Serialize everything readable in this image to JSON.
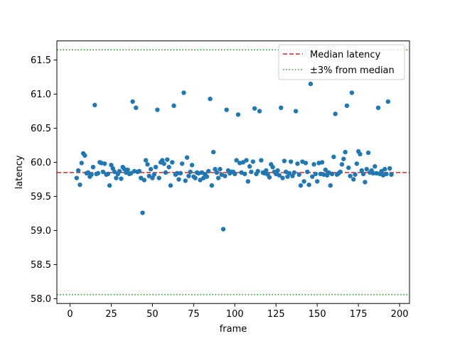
{
  "chart_data": {
    "type": "scatter",
    "title": "",
    "xlabel": "frame",
    "ylabel": "latency",
    "xlim": [
      -8,
      206
    ],
    "ylim": [
      57.93,
      61.78
    ],
    "xticks": [
      0,
      25,
      50,
      75,
      100,
      125,
      150,
      175,
      200
    ],
    "xtick_labels": [
      "0",
      "25",
      "50",
      "75",
      "100",
      "125",
      "150",
      "175",
      "200"
    ],
    "yticks": [
      58.0,
      58.5,
      59.0,
      59.5,
      60.0,
      60.5,
      61.0,
      61.5
    ],
    "ytick_labels": [
      "58.0",
      "58.5",
      "59.0",
      "59.5",
      "60.0",
      "60.5",
      "61.0",
      "61.5"
    ],
    "grid": false,
    "legend_position": "top-right",
    "marker_color": "#1f77b4",
    "reference_lines": [
      {
        "name": "Median latency",
        "y": 59.85,
        "color": "#d62728",
        "style": "dashed"
      },
      {
        "name": "±3% from median",
        "y": 61.65,
        "color": "#2ca02c",
        "style": "dotted"
      },
      {
        "name": "±3% from median",
        "y": 58.06,
        "color": "#2ca02c",
        "style": "dotted"
      }
    ],
    "legend": [
      {
        "label": "Median latency",
        "color": "#d62728",
        "style": "dashed"
      },
      {
        "label": "±3% from median",
        "color": "#2ca02c",
        "style": "dotted"
      }
    ],
    "points": [
      [
        4,
        59.77
      ],
      [
        5,
        59.88
      ],
      [
        6,
        59.67
      ],
      [
        7,
        59.99
      ],
      [
        8,
        60.13
      ],
      [
        9,
        60.1
      ],
      [
        10,
        59.84
      ],
      [
        11,
        59.85
      ],
      [
        12,
        59.79
      ],
      [
        13,
        59.82
      ],
      [
        14,
        59.93
      ],
      [
        15,
        60.84
      ],
      [
        16,
        59.83
      ],
      [
        17,
        59.84
      ],
      [
        18,
        60.0
      ],
      [
        19,
        59.99
      ],
      [
        20,
        59.86
      ],
      [
        21,
        59.98
      ],
      [
        22,
        59.82
      ],
      [
        23,
        59.83
      ],
      [
        24,
        59.66
      ],
      [
        25,
        59.96
      ],
      [
        26,
        59.91
      ],
      [
        27,
        59.86
      ],
      [
        28,
        59.77
      ],
      [
        29,
        59.83
      ],
      [
        30,
        59.87
      ],
      [
        31,
        59.76
      ],
      [
        32,
        59.93
      ],
      [
        33,
        59.9
      ],
      [
        34,
        59.85
      ],
      [
        35,
        59.89
      ],
      [
        36,
        59.83
      ],
      [
        37,
        59.84
      ],
      [
        38,
        60.89
      ],
      [
        39,
        59.87
      ],
      [
        40,
        60.8
      ],
      [
        41,
        59.86
      ],
      [
        42,
        59.87
      ],
      [
        43,
        59.77
      ],
      [
        44,
        59.26
      ],
      [
        45,
        59.74
      ],
      [
        46,
        60.03
      ],
      [
        47,
        59.97
      ],
      [
        48,
        59.8
      ],
      [
        49,
        59.9
      ],
      [
        50,
        59.77
      ],
      [
        51,
        59.82
      ],
      [
        52,
        59.93
      ],
      [
        53,
        60.77
      ],
      [
        54,
        59.77
      ],
      [
        55,
        60.0
      ],
      [
        56,
        60.03
      ],
      [
        57,
        59.98
      ],
      [
        58,
        59.85
      ],
      [
        59,
        60.04
      ],
      [
        60,
        59.93
      ],
      [
        61,
        59.66
      ],
      [
        62,
        60.0
      ],
      [
        63,
        60.83
      ],
      [
        64,
        59.82
      ],
      [
        65,
        59.84
      ],
      [
        66,
        59.75
      ],
      [
        67,
        59.84
      ],
      [
        68,
        59.98
      ],
      [
        69,
        61.02
      ],
      [
        70,
        59.73
      ],
      [
        71,
        60.07
      ],
      [
        72,
        59.8
      ],
      [
        73,
        59.86
      ],
      [
        74,
        59.96
      ],
      [
        75,
        59.79
      ],
      [
        76,
        59.77
      ],
      [
        77,
        59.85
      ],
      [
        78,
        59.84
      ],
      [
        79,
        59.74
      ],
      [
        80,
        59.85
      ],
      [
        81,
        59.77
      ],
      [
        82,
        59.82
      ],
      [
        83,
        59.79
      ],
      [
        84,
        59.87
      ],
      [
        85,
        60.93
      ],
      [
        86,
        59.66
      ],
      [
        87,
        60.15
      ],
      [
        88,
        59.9
      ],
      [
        89,
        59.85
      ],
      [
        90,
        59.77
      ],
      [
        91,
        59.9
      ],
      [
        92,
        59.82
      ],
      [
        93,
        59.02
      ],
      [
        94,
        59.8
      ],
      [
        95,
        60.77
      ],
      [
        96,
        59.88
      ],
      [
        97,
        59.84
      ],
      [
        98,
        59.86
      ],
      [
        99,
        59.86
      ],
      [
        100,
        59.83
      ],
      [
        101,
        60.03
      ],
      [
        102,
        60.7
      ],
      [
        103,
        59.99
      ],
      [
        104,
        59.85
      ],
      [
        105,
        60.0
      ],
      [
        106,
        59.83
      ],
      [
        107,
        60.03
      ],
      [
        108,
        59.72
      ],
      [
        109,
        59.94
      ],
      [
        110,
        59.86
      ],
      [
        111,
        60.01
      ],
      [
        112,
        60.79
      ],
      [
        113,
        59.83
      ],
      [
        114,
        59.87
      ],
      [
        115,
        60.75
      ],
      [
        116,
        60.03
      ],
      [
        117,
        59.85
      ],
      [
        118,
        59.84
      ],
      [
        119,
        59.88
      ],
      [
        120,
        59.82
      ],
      [
        121,
        59.78
      ],
      [
        122,
        59.97
      ],
      [
        123,
        59.93
      ],
      [
        124,
        59.86
      ],
      [
        125,
        59.83
      ],
      [
        126,
        59.88
      ],
      [
        127,
        59.81
      ],
      [
        128,
        60.8
      ],
      [
        129,
        59.77
      ],
      [
        130,
        60.02
      ],
      [
        131,
        59.86
      ],
      [
        132,
        59.79
      ],
      [
        133,
        59.84
      ],
      [
        134,
        60.01
      ],
      [
        135,
        59.8
      ],
      [
        136,
        59.85
      ],
      [
        137,
        60.75
      ],
      [
        138,
        59.98
      ],
      [
        139,
        59.82
      ],
      [
        140,
        59.66
      ],
      [
        141,
        60.01
      ],
      [
        142,
        59.72
      ],
      [
        143,
        59.99
      ],
      [
        144,
        59.86
      ],
      [
        145,
        59.67
      ],
      [
        146,
        61.15
      ],
      [
        147,
        59.79
      ],
      [
        148,
        59.97
      ],
      [
        149,
        59.83
      ],
      [
        150,
        59.72
      ],
      [
        151,
        59.99
      ],
      [
        152,
        59.83
      ],
      [
        153,
        60.0
      ],
      [
        154,
        59.82
      ],
      [
        155,
        59.89
      ],
      [
        156,
        59.81
      ],
      [
        157,
        59.85
      ],
      [
        158,
        59.66
      ],
      [
        159,
        59.83
      ],
      [
        160,
        60.08
      ],
      [
        161,
        60.71
      ],
      [
        162,
        59.82
      ],
      [
        163,
        59.84
      ],
      [
        164,
        59.86
      ],
      [
        165,
        59.97
      ],
      [
        166,
        60.05
      ],
      [
        167,
        60.15
      ],
      [
        168,
        60.83
      ],
      [
        169,
        59.92
      ],
      [
        170,
        59.8
      ],
      [
        171,
        61.02
      ],
      [
        172,
        59.75
      ],
      [
        173,
        59.82
      ],
      [
        174,
        59.98
      ],
      [
        175,
        60.16
      ],
      [
        176,
        60.12
      ],
      [
        177,
        59.88
      ],
      [
        178,
        59.83
      ],
      [
        179,
        59.71
      ],
      [
        180,
        59.9
      ],
      [
        181,
        60.14
      ],
      [
        182,
        59.85
      ],
      [
        183,
        59.88
      ],
      [
        184,
        59.84
      ],
      [
        185,
        59.94
      ],
      [
        186,
        59.84
      ],
      [
        187,
        60.8
      ],
      [
        188,
        59.83
      ],
      [
        189,
        59.87
      ],
      [
        190,
        59.81
      ],
      [
        191,
        59.9
      ],
      [
        192,
        59.83
      ],
      [
        193,
        60.89
      ],
      [
        194,
        59.91
      ],
      [
        195,
        59.82
      ]
    ]
  }
}
